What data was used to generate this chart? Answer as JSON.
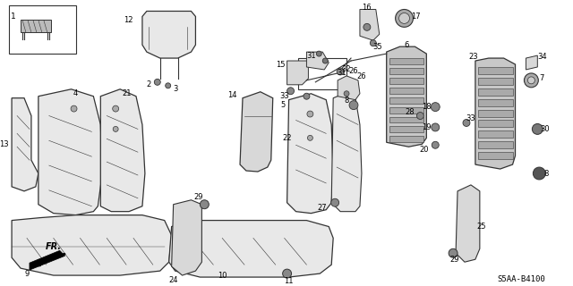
{
  "background_color": "#ffffff",
  "diagram_code": "S5AA-B4100",
  "fig_width": 6.4,
  "fig_height": 3.2,
  "dpi": 100,
  "line_color": "#333333",
  "fill_color": "#e8e8e8",
  "fill_dark": "#cccccc",
  "fill_mid": "#d8d8d8"
}
